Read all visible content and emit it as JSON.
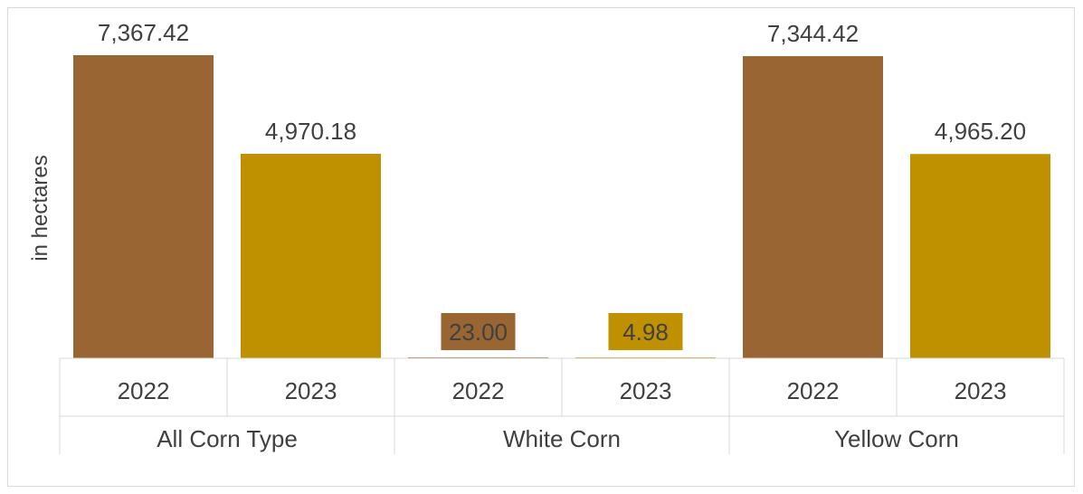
{
  "chart_data": {
    "type": "bar",
    "ylabel": "in hectares",
    "groups": [
      {
        "name": "All Corn Type",
        "categories": [
          "2022",
          "2023"
        ],
        "values": [
          7367.42,
          4970.18
        ],
        "labels": [
          "7,367.42",
          "4,970.18"
        ]
      },
      {
        "name": "White Corn",
        "categories": [
          "2022",
          "2023"
        ],
        "values": [
          23.0,
          4.98
        ],
        "labels": [
          "23.00",
          "4.98"
        ]
      },
      {
        "name": "Yellow Corn",
        "categories": [
          "2022",
          "2023"
        ],
        "values": [
          7344.42,
          4965.2
        ],
        "labels": [
          "7,344.42",
          "4,965.20"
        ]
      }
    ],
    "colors": {
      "2022": "#996633",
      "2023": "#bf9000"
    },
    "ylim": [
      0,
      7367.42
    ]
  }
}
